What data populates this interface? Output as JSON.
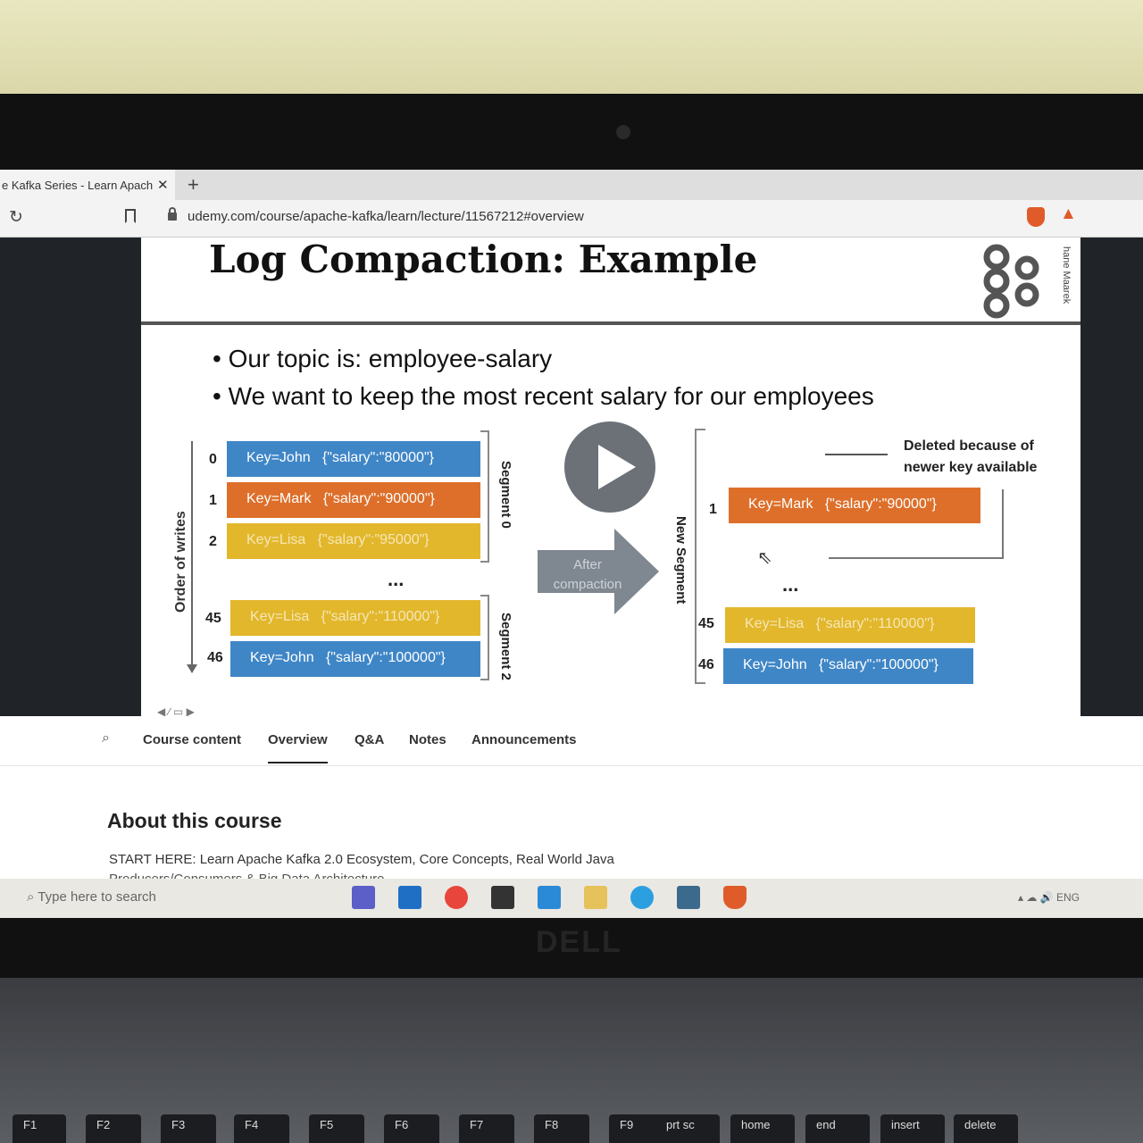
{
  "browser": {
    "tab_title": "e Kafka Series - Learn Apach",
    "tab_close": "✕",
    "new_tab": "+",
    "url": "udemy.com/course/apache-kafka/learn/lecture/11567212#overview"
  },
  "slide": {
    "title": "Log Compaction: Example",
    "author": "hane Maarek",
    "bullets": [
      "Our topic is: employee-salary",
      "We want to keep the most recent salary for our employees"
    ],
    "order_label": "Order of writes",
    "segment0_label": "Segment 0",
    "segment2_label": "Segment 2",
    "new_segment_label": "New Segment",
    "after_label": "After compaction",
    "deleted_note": "Deleted because of newer key available",
    "dots": "...",
    "left_records": [
      {
        "offset": "0",
        "key": "Key=John",
        "value": "{\"salary\":\"80000\"}",
        "color": "#3f86c7"
      },
      {
        "offset": "1",
        "key": "Key=Mark",
        "value": "{\"salary\":\"90000\"}",
        "color": "#dd6f2a"
      },
      {
        "offset": "2",
        "key": "Key=Lisa",
        "value": "{\"salary\":\"95000\"}",
        "color": "#e2b72c"
      },
      {
        "offset": "45",
        "key": "Key=Lisa",
        "value": "{\"salary\":\"110000\"}",
        "color": "#e2b72c"
      },
      {
        "offset": "46",
        "key": "Key=John",
        "value": "{\"salary\":\"100000\"}",
        "color": "#3f86c7"
      }
    ],
    "right_records": [
      {
        "offset": "1",
        "key": "Key=Mark",
        "value": "{\"salary\":\"90000\"}",
        "color": "#dd6f2a"
      },
      {
        "offset": "45",
        "key": "Key=Lisa",
        "value": "{\"salary\":\"110000\"}",
        "color": "#e2b72c"
      },
      {
        "offset": "46",
        "key": "Key=John",
        "value": "{\"salary\":\"100000\"}",
        "color": "#3f86c7"
      }
    ]
  },
  "nav": {
    "items": [
      "Course content",
      "Overview",
      "Q&A",
      "Notes",
      "Announcements"
    ],
    "active": "Overview"
  },
  "about": {
    "heading": "About this course",
    "description": "START HERE: Learn Apache Kafka 2.0 Ecosystem, Core Concepts, Real World Java",
    "description_cut": "Producers/Consumers & Big Data Architecture"
  },
  "taskbar": {
    "search_placeholder": "Type here to search",
    "lang": "ENG"
  },
  "laptop_brand": "DELL",
  "keys": [
    "F1",
    "F2",
    "F3",
    "F4",
    "F5",
    "F6",
    "F7",
    "F8",
    "F9",
    "prt sc",
    "home",
    "end",
    "insert",
    "delete"
  ]
}
